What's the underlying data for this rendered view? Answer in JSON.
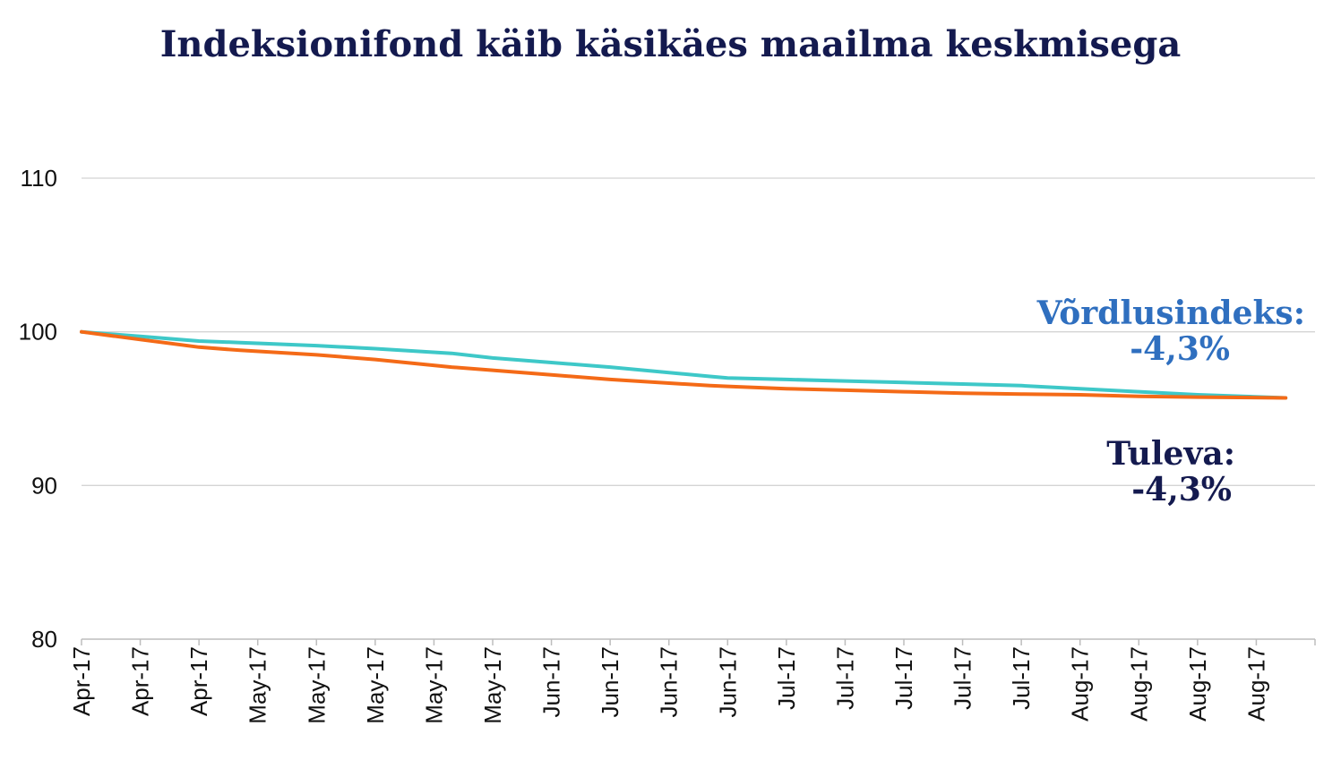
{
  "chart_data": {
    "type": "line",
    "title": "Indeksionifond käib käsikäes maailma keskmisega",
    "xlabel": "",
    "ylabel": "",
    "ylim": [
      80,
      110
    ],
    "yticks": [
      80,
      90,
      100,
      110
    ],
    "grid": true,
    "categories": [
      "Apr-17",
      "Apr-17",
      "Apr-17",
      "May-17",
      "May-17",
      "May-17",
      "May-17",
      "May-17",
      "Jun-17",
      "Jun-17",
      "Jun-17",
      "Jun-17",
      "Jul-17",
      "Jul-17",
      "Jul-17",
      "Jul-17",
      "Jul-17",
      "Aug-17",
      "Aug-17",
      "Aug-17",
      "Aug-17"
    ],
    "series": [
      {
        "color": "#3ec8c8",
        "x": [
          0,
          1,
          2,
          2.7,
          4,
          5,
          6.3,
          7,
          8,
          9,
          10.7,
          11,
          12,
          13,
          14,
          15,
          16,
          17,
          18,
          19,
          20.5
        ],
        "values": [
          100.0,
          99.7,
          99.4,
          99.3,
          99.1,
          98.9,
          98.6,
          98.3,
          98.0,
          97.7,
          97.1,
          97.0,
          96.9,
          96.8,
          96.7,
          96.6,
          96.5,
          96.3,
          96.1,
          95.9,
          95.7
        ]
      },
      {
        "color": "#f46a17",
        "x": [
          0,
          1,
          2,
          2.7,
          4,
          5,
          6.3,
          7,
          8,
          9,
          10.7,
          11,
          12,
          13,
          14,
          15,
          16,
          17,
          18,
          19,
          20.5
        ],
        "values": [
          100.0,
          99.5,
          99.0,
          98.8,
          98.5,
          98.2,
          97.7,
          97.5,
          97.2,
          96.9,
          96.5,
          96.45,
          96.3,
          96.2,
          96.1,
          96.0,
          95.95,
          95.9,
          95.8,
          95.75,
          95.7
        ]
      }
    ],
    "annotations": [
      {
        "line1": "Võrdlusindeks:",
        "line2": "-4,3%",
        "color": "#2f6fbf"
      },
      {
        "line1": "Tuleva:",
        "line2": "-4,3%",
        "color": "#141a4f"
      }
    ]
  }
}
